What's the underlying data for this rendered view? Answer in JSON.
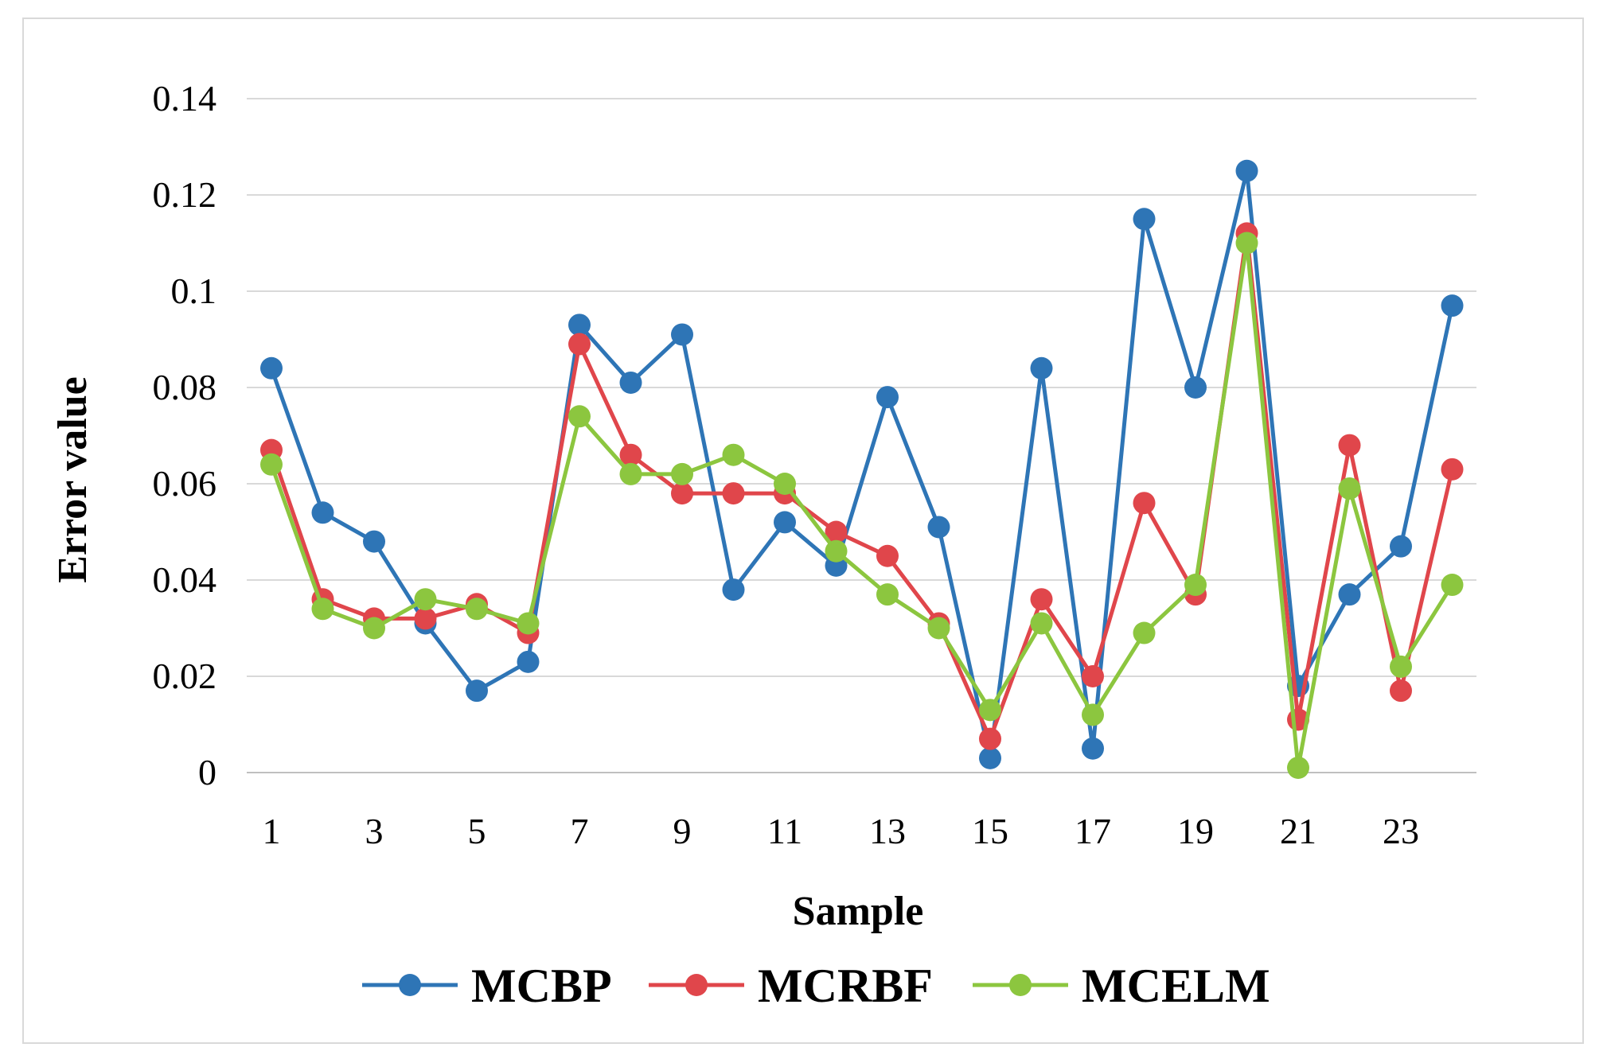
{
  "chart_data": {
    "type": "line",
    "title": "",
    "xlabel": "Sample",
    "ylabel": "Error value",
    "ylim": [
      0,
      0.14
    ],
    "xlim": [
      1,
      24
    ],
    "grid": true,
    "legend_position": "bottom",
    "y_ticks": [
      "0",
      "0.02",
      "0.04",
      "0.06",
      "0.08",
      "0.1",
      "0.12",
      "0.14"
    ],
    "x_ticks": [
      "1",
      "3",
      "5",
      "7",
      "9",
      "11",
      "13",
      "15",
      "17",
      "19",
      "21",
      "23"
    ],
    "x": [
      1,
      2,
      3,
      4,
      5,
      6,
      7,
      8,
      9,
      10,
      11,
      12,
      13,
      14,
      15,
      16,
      17,
      18,
      19,
      20,
      21,
      22,
      23,
      24
    ],
    "series": [
      {
        "name": "MCBP",
        "color": "#2e75b6",
        "values": [
          0.084,
          0.054,
          0.048,
          0.031,
          0.017,
          0.023,
          0.093,
          0.081,
          0.091,
          0.038,
          0.052,
          0.043,
          0.078,
          0.051,
          0.003,
          0.084,
          0.005,
          0.115,
          0.08,
          0.125,
          0.018,
          0.037,
          0.047,
          0.097
        ]
      },
      {
        "name": "MCRBF",
        "color": "#e0464b",
        "values": [
          0.067,
          0.036,
          0.032,
          0.032,
          0.035,
          0.029,
          0.089,
          0.066,
          0.058,
          0.058,
          0.058,
          0.05,
          0.045,
          0.031,
          0.007,
          0.036,
          0.02,
          0.056,
          0.037,
          0.112,
          0.011,
          0.068,
          0.017,
          0.063
        ]
      },
      {
        "name": "MCELM",
        "color": "#8cc63f",
        "values": [
          0.064,
          0.034,
          0.03,
          0.036,
          0.034,
          0.031,
          0.074,
          0.062,
          0.062,
          0.066,
          0.06,
          0.046,
          0.037,
          0.03,
          0.013,
          0.031,
          0.012,
          0.029,
          0.039,
          0.11,
          0.001,
          0.059,
          0.022,
          0.039
        ]
      }
    ]
  }
}
